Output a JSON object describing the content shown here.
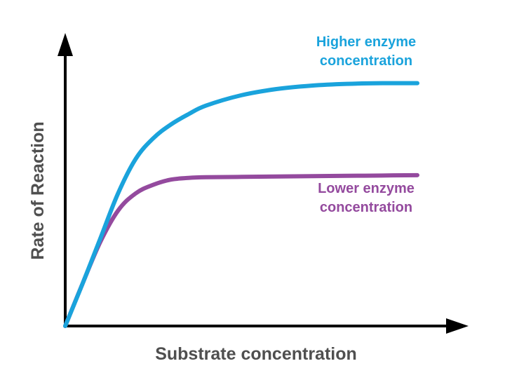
{
  "chart_data": {
    "type": "line",
    "xlabel": "Substrate concentration",
    "ylabel": "Rate of Reaction",
    "xlim": [
      0,
      10
    ],
    "ylim": [
      0,
      8
    ],
    "grid": false,
    "legend": "direct labels at right",
    "series": [
      {
        "name": "Higher enzyme concentration",
        "name_lines": [
          "Higher enzyme",
          "concentration"
        ],
        "color": "#1aa3dc",
        "x": [
          0,
          0.5,
          1.0,
          1.5,
          2.0,
          2.5,
          3.0,
          3.5,
          4.0,
          5.0,
          6.0,
          7.0,
          8.0,
          9.0,
          10.0
        ],
        "y": [
          0,
          1.25,
          2.55,
          3.85,
          4.85,
          5.45,
          5.85,
          6.15,
          6.4,
          6.7,
          6.88,
          6.98,
          7.03,
          7.05,
          7.05
        ]
      },
      {
        "name": "Lower enzyme concentration",
        "name_lines": [
          "Lower enzyme",
          "concentration"
        ],
        "color": "#944a9e",
        "x": [
          0,
          0.5,
          1.0,
          1.5,
          2.0,
          2.5,
          3.0,
          3.5,
          4.0,
          5.0,
          6.0,
          7.0,
          8.0,
          9.0,
          10.0
        ],
        "y": [
          0,
          1.25,
          2.45,
          3.35,
          3.85,
          4.1,
          4.25,
          4.3,
          4.32,
          4.33,
          4.34,
          4.35,
          4.36,
          4.37,
          4.38
        ]
      }
    ]
  }
}
